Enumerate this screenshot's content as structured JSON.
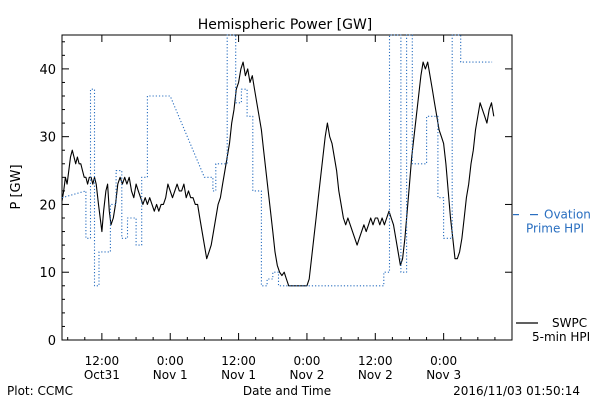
{
  "chart_data": {
    "type": "line",
    "title": "Hemispheric Power [GW]",
    "xlabel": "Date and Time",
    "ylabel": "P [GW]",
    "ylim": [
      0,
      45
    ],
    "xlim": [
      -19,
      60
    ],
    "x_unit": "hours since 2016-10-31 00:00",
    "yticks": [
      0,
      10,
      20,
      30,
      40
    ],
    "xticks": [
      {
        "x": -12,
        "line1": "12:00",
        "line2": "Oct31"
      },
      {
        "x": 0,
        "line1": "0:00",
        "line2": "Nov 1"
      },
      {
        "x": 12,
        "line1": "12:00",
        "line2": "Nov 1"
      },
      {
        "x": 24,
        "line1": "0:00",
        "line2": "Nov 2"
      },
      {
        "x": 36,
        "line1": "12:00",
        "line2": "Nov 2"
      },
      {
        "x": 48,
        "line1": "0:00",
        "line2": "Nov 3"
      }
    ],
    "grid": false,
    "legend": [
      {
        "name": "Ovation Prime HPI",
        "line1": "Ovation",
        "line2": "Prime HPI",
        "placement": "right",
        "color": "#2a6fc0",
        "style": "dotted"
      },
      {
        "name": "SWPC 5-min HPI",
        "line1": "SWPC",
        "line2": "5-min HPI",
        "placement": "bottom-right",
        "color": "#000000",
        "style": "solid"
      }
    ],
    "right_marker_value": 18.5,
    "series": [
      {
        "name": "SWPC 5-min HPI",
        "color": "#000000",
        "style": "solid",
        "points": [
          [
            -19.0,
            20.5
          ],
          [
            -18.7,
            22
          ],
          [
            -18.4,
            24
          ],
          [
            -18.1,
            23
          ],
          [
            -17.8,
            25
          ],
          [
            -17.5,
            27
          ],
          [
            -17.2,
            28
          ],
          [
            -16.9,
            27
          ],
          [
            -16.6,
            26
          ],
          [
            -16.3,
            27
          ],
          [
            -16.0,
            26
          ],
          [
            -15.7,
            26
          ],
          [
            -15.4,
            25
          ],
          [
            -15.1,
            24
          ],
          [
            -14.8,
            24
          ],
          [
            -14.5,
            23
          ],
          [
            -14.2,
            24
          ],
          [
            -13.9,
            24
          ],
          [
            -13.6,
            23
          ],
          [
            -13.3,
            24
          ],
          [
            -13.0,
            23
          ],
          [
            -12.6,
            20
          ],
          [
            -12.3,
            18
          ],
          [
            -12.0,
            16
          ],
          [
            -11.7,
            19
          ],
          [
            -11.3,
            22
          ],
          [
            -11.0,
            23
          ],
          [
            -10.7,
            19
          ],
          [
            -10.4,
            17
          ],
          [
            -10.0,
            18
          ],
          [
            -9.6,
            20
          ],
          [
            -9.2,
            23
          ],
          [
            -8.8,
            24
          ],
          [
            -8.4,
            23
          ],
          [
            -8.0,
            24
          ],
          [
            -7.6,
            23
          ],
          [
            -7.2,
            24
          ],
          [
            -6.8,
            22
          ],
          [
            -6.4,
            21
          ],
          [
            -6.0,
            23
          ],
          [
            -5.6,
            22
          ],
          [
            -5.2,
            21
          ],
          [
            -4.8,
            20
          ],
          [
            -4.4,
            21
          ],
          [
            -4.0,
            20
          ],
          [
            -3.6,
            21
          ],
          [
            -3.2,
            20
          ],
          [
            -2.8,
            19
          ],
          [
            -2.4,
            20
          ],
          [
            -2.0,
            19
          ],
          [
            -1.6,
            20
          ],
          [
            -1.2,
            20
          ],
          [
            -0.8,
            21
          ],
          [
            -0.4,
            23
          ],
          [
            0.0,
            22
          ],
          [
            0.4,
            21
          ],
          [
            0.8,
            22
          ],
          [
            1.2,
            23
          ],
          [
            1.6,
            22
          ],
          [
            2.0,
            22
          ],
          [
            2.4,
            23
          ],
          [
            2.8,
            21
          ],
          [
            3.2,
            22
          ],
          [
            3.6,
            21
          ],
          [
            4.0,
            21
          ],
          [
            4.4,
            20
          ],
          [
            4.8,
            20
          ],
          [
            5.2,
            18
          ],
          [
            5.6,
            16
          ],
          [
            6.0,
            14
          ],
          [
            6.4,
            12
          ],
          [
            6.8,
            13
          ],
          [
            7.2,
            14
          ],
          [
            7.6,
            16
          ],
          [
            8.0,
            18
          ],
          [
            8.4,
            20
          ],
          [
            8.8,
            21
          ],
          [
            9.2,
            23
          ],
          [
            9.6,
            25
          ],
          [
            10.0,
            27
          ],
          [
            10.4,
            29
          ],
          [
            10.8,
            32
          ],
          [
            11.2,
            34
          ],
          [
            11.6,
            37
          ],
          [
            12.0,
            38
          ],
          [
            12.4,
            40
          ],
          [
            12.8,
            41
          ],
          [
            13.2,
            39
          ],
          [
            13.6,
            40
          ],
          [
            14.0,
            38
          ],
          [
            14.4,
            39
          ],
          [
            14.8,
            37
          ],
          [
            15.2,
            35
          ],
          [
            15.6,
            33
          ],
          [
            16.0,
            31
          ],
          [
            16.4,
            28
          ],
          [
            16.8,
            25
          ],
          [
            17.2,
            22
          ],
          [
            17.6,
            19
          ],
          [
            18.0,
            16
          ],
          [
            18.4,
            13
          ],
          [
            18.8,
            11
          ],
          [
            19.2,
            10
          ],
          [
            19.6,
            9.5
          ],
          [
            20.0,
            10
          ],
          [
            20.4,
            9
          ],
          [
            20.8,
            8
          ],
          [
            21.2,
            8
          ],
          [
            21.6,
            8
          ],
          [
            22.0,
            8
          ],
          [
            22.4,
            8
          ],
          [
            22.8,
            8
          ],
          [
            23.2,
            8
          ],
          [
            23.6,
            8
          ],
          [
            24.0,
            8
          ],
          [
            24.4,
            9
          ],
          [
            24.8,
            12
          ],
          [
            25.2,
            15
          ],
          [
            25.6,
            18
          ],
          [
            26.0,
            21
          ],
          [
            26.4,
            24
          ],
          [
            26.8,
            27
          ],
          [
            27.2,
            30
          ],
          [
            27.6,
            32
          ],
          [
            28.0,
            30
          ],
          [
            28.4,
            29
          ],
          [
            28.8,
            27
          ],
          [
            29.2,
            25
          ],
          [
            29.6,
            22
          ],
          [
            30.0,
            20
          ],
          [
            30.4,
            18
          ],
          [
            30.8,
            17
          ],
          [
            31.2,
            18
          ],
          [
            31.6,
            17
          ],
          [
            32.0,
            16
          ],
          [
            32.4,
            15
          ],
          [
            32.8,
            14
          ],
          [
            33.2,
            15
          ],
          [
            33.6,
            16
          ],
          [
            34.0,
            17
          ],
          [
            34.4,
            16
          ],
          [
            34.8,
            17
          ],
          [
            35.2,
            18
          ],
          [
            35.6,
            17
          ],
          [
            36.0,
            18
          ],
          [
            36.4,
            18
          ],
          [
            36.8,
            17
          ],
          [
            37.2,
            18
          ],
          [
            37.6,
            17
          ],
          [
            38.0,
            18
          ],
          [
            38.4,
            19
          ],
          [
            38.8,
            18
          ],
          [
            39.2,
            17
          ],
          [
            39.6,
            15
          ],
          [
            40.0,
            13
          ],
          [
            40.4,
            11
          ],
          [
            40.8,
            12
          ],
          [
            41.2,
            15
          ],
          [
            41.6,
            19
          ],
          [
            42.0,
            23
          ],
          [
            42.4,
            27
          ],
          [
            42.8,
            30
          ],
          [
            43.2,
            33
          ],
          [
            43.6,
            36
          ],
          [
            44.0,
            39
          ],
          [
            44.4,
            41
          ],
          [
            44.8,
            40
          ],
          [
            45.2,
            41
          ],
          [
            45.6,
            39
          ],
          [
            46.0,
            37
          ],
          [
            46.4,
            35
          ],
          [
            46.8,
            33
          ],
          [
            47.2,
            31
          ],
          [
            47.6,
            30
          ],
          [
            48.0,
            29
          ],
          [
            48.4,
            26
          ],
          [
            48.8,
            22
          ],
          [
            49.2,
            18
          ],
          [
            49.6,
            15
          ],
          [
            50.0,
            12
          ],
          [
            50.4,
            12
          ],
          [
            50.8,
            13
          ],
          [
            51.2,
            15
          ],
          [
            51.6,
            18
          ],
          [
            52.0,
            21
          ],
          [
            52.4,
            23
          ],
          [
            52.8,
            26
          ],
          [
            53.2,
            28
          ],
          [
            53.6,
            31
          ],
          [
            54.0,
            33
          ],
          [
            54.4,
            35
          ],
          [
            54.8,
            34
          ],
          [
            55.2,
            33
          ],
          [
            55.6,
            32
          ],
          [
            56.0,
            34
          ],
          [
            56.4,
            35
          ],
          [
            56.8,
            33
          ]
        ]
      },
      {
        "name": "Ovation Prime HPI",
        "color": "#2a6fc0",
        "style": "dotted",
        "points": [
          [
            -19.0,
            21
          ],
          [
            -14.8,
            22
          ],
          [
            -14.8,
            15
          ],
          [
            -14.0,
            15
          ],
          [
            -14.0,
            37
          ],
          [
            -13.3,
            37
          ],
          [
            -13.3,
            8
          ],
          [
            -12.5,
            8
          ],
          [
            -12.5,
            13
          ],
          [
            -10.5,
            13
          ],
          [
            -10.5,
            20
          ],
          [
            -9.5,
            20
          ],
          [
            -9.5,
            25
          ],
          [
            -8.5,
            25
          ],
          [
            -8.5,
            15
          ],
          [
            -7.5,
            15
          ],
          [
            -7.5,
            18
          ],
          [
            -6.0,
            18
          ],
          [
            -6.0,
            14
          ],
          [
            -5.0,
            14
          ],
          [
            -5.0,
            24
          ],
          [
            -4.0,
            24
          ],
          [
            -4.0,
            36
          ],
          [
            0.0,
            36
          ],
          [
            6.0,
            24
          ],
          [
            7.5,
            24
          ],
          [
            7.5,
            22
          ],
          [
            8.0,
            22
          ],
          [
            8.0,
            26
          ],
          [
            10.0,
            26
          ],
          [
            10.0,
            45
          ],
          [
            11.5,
            45
          ],
          [
            11.5,
            35
          ],
          [
            12.5,
            35
          ],
          [
            12.5,
            37
          ],
          [
            13.5,
            37
          ],
          [
            13.5,
            33
          ],
          [
            14.5,
            33
          ],
          [
            14.5,
            22
          ],
          [
            16.0,
            22
          ],
          [
            16.0,
            8
          ],
          [
            17.0,
            8
          ],
          [
            17.0,
            9
          ],
          [
            18.0,
            9
          ],
          [
            18.0,
            10
          ],
          [
            19.0,
            10
          ],
          [
            19.0,
            8
          ],
          [
            37.5,
            8
          ],
          [
            37.5,
            10
          ],
          [
            38.5,
            10
          ],
          [
            38.5,
            45
          ],
          [
            40.5,
            45
          ],
          [
            40.5,
            10
          ],
          [
            41.5,
            10
          ],
          [
            41.5,
            45
          ],
          [
            42.5,
            45
          ],
          [
            42.5,
            26
          ],
          [
            45.0,
            26
          ],
          [
            45.0,
            33
          ],
          [
            47.0,
            33
          ],
          [
            47.0,
            21
          ],
          [
            48.0,
            21
          ],
          [
            48.0,
            15
          ],
          [
            49.5,
            15
          ],
          [
            49.5,
            45
          ],
          [
            51.0,
            45
          ],
          [
            51.0,
            41
          ],
          [
            56.5,
            41
          ]
        ]
      }
    ]
  },
  "footer": {
    "plot_credit": "Plot: CCMC",
    "timestamp": "2016/11/03 01:50:14"
  }
}
